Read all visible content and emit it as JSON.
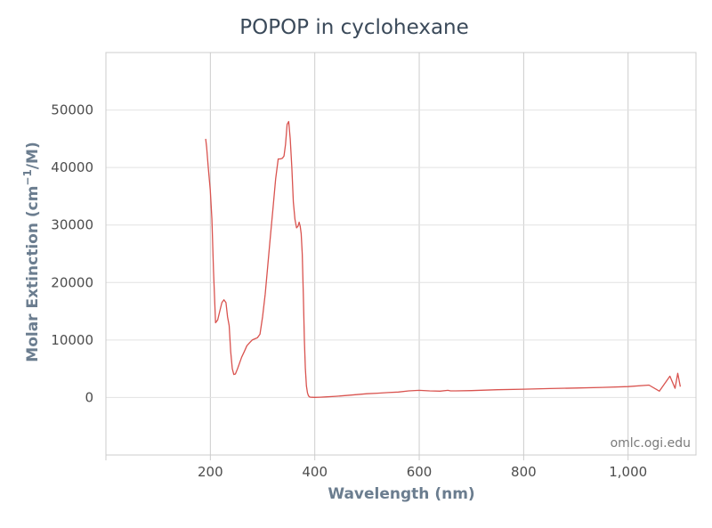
{
  "chart_data": {
    "type": "line",
    "title": "POPOP in cyclohexane",
    "xlabel": "Wavelength (nm)",
    "ylabel_parts": [
      "Molar Extinction (cm",
      "−1",
      "/M)"
    ],
    "credit": "omlc.ogi.edu",
    "xlim": [
      0,
      1130
    ],
    "ylim": [
      -10000,
      60000
    ],
    "x_ticks": [
      200,
      400,
      600,
      800,
      1000
    ],
    "x_tick_labels": [
      "200",
      "400",
      "600",
      "800",
      "1,000"
    ],
    "y_ticks": [
      0,
      10000,
      20000,
      30000,
      40000,
      50000
    ],
    "y_tick_labels": [
      "0",
      "10000",
      "20000",
      "30000",
      "40000",
      "50000"
    ],
    "grid": true,
    "line_color": "#d9534f",
    "series": [
      {
        "x": [
          191,
          193,
          196,
          200,
          203,
          206,
          210,
          214,
          218,
          222,
          226,
          230,
          233,
          236,
          239,
          242,
          245,
          248,
          252,
          256,
          260,
          265,
          270,
          275,
          280,
          285,
          290,
          295,
          300,
          305,
          310,
          315,
          320,
          325,
          330,
          334,
          338,
          341,
          344,
          347,
          350,
          353,
          356,
          359,
          362,
          365,
          368,
          370,
          372,
          374,
          376,
          378,
          380,
          382,
          384,
          386,
          388,
          390,
          392,
          395,
          400,
          410,
          420,
          440,
          460,
          480,
          500,
          520,
          540,
          560,
          580,
          600,
          620,
          640,
          655,
          660,
          670,
          700,
          750,
          800,
          850,
          900,
          950,
          1000,
          1040,
          1060,
          1080,
          1090,
          1095,
          1100
        ],
        "y": [
          45000,
          43500,
          40000,
          36000,
          31000,
          22000,
          13000,
          13500,
          15000,
          16500,
          17000,
          16500,
          14000,
          12500,
          8000,
          5000,
          4000,
          4100,
          5000,
          6000,
          7000,
          8000,
          9000,
          9500,
          10000,
          10200,
          10400,
          11000,
          14000,
          18000,
          23000,
          28000,
          33000,
          38000,
          41500,
          41500,
          41600,
          42000,
          44000,
          47500,
          48000,
          45000,
          40000,
          34000,
          31000,
          29500,
          29800,
          30500,
          29800,
          28500,
          25000,
          18000,
          10000,
          5000,
          2000,
          800,
          300,
          100,
          50,
          30,
          20,
          50,
          100,
          200,
          350,
          500,
          650,
          750,
          850,
          950,
          1150,
          1250,
          1150,
          1100,
          1250,
          1150,
          1150,
          1200,
          1350,
          1450,
          1550,
          1650,
          1750,
          1900,
          2150,
          2300,
          2500,
          2800,
          3000,
          3100
        ]
      }
    ]
  }
}
